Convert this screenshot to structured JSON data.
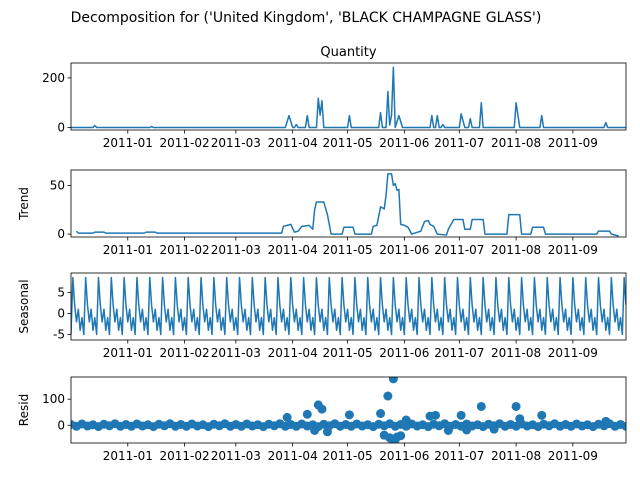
{
  "figure": {
    "suptitle": "Decomposition for ('United Kingdom', 'BLACK CHAMPAGNE GLASS')"
  },
  "chart_data": [
    {
      "type": "line",
      "title": "Quantity",
      "ylabel": "",
      "xlim": [
        "2010-12-01",
        "2011-09-30"
      ],
      "ylim": [
        -10,
        260
      ],
      "yticks": [
        0,
        200
      ],
      "xticks": [
        "2011-01",
        "2011-02",
        "2011-03",
        "2011-04",
        "2011-05",
        "2011-06",
        "2011-07",
        "2011-08",
        "2011-09"
      ],
      "color": "#1f77b4",
      "points": [
        [
          "2010-12-01",
          0
        ],
        [
          "2010-12-13",
          0
        ],
        [
          "2010-12-14",
          8
        ],
        [
          "2010-12-15",
          0
        ],
        [
          "2011-01-13",
          0
        ],
        [
          "2011-01-14",
          4
        ],
        [
          "2011-01-15",
          0
        ],
        [
          "2011-03-28",
          0
        ],
        [
          "2011-03-30",
          48
        ],
        [
          "2011-04-01",
          0
        ],
        [
          "2011-04-02",
          0
        ],
        [
          "2011-04-03",
          12
        ],
        [
          "2011-04-04",
          0
        ],
        [
          "2011-04-08",
          0
        ],
        [
          "2011-04-09",
          48
        ],
        [
          "2011-04-10",
          0
        ],
        [
          "2011-04-14",
          0
        ],
        [
          "2011-04-15",
          118
        ],
        [
          "2011-04-16",
          50
        ],
        [
          "2011-04-17",
          108
        ],
        [
          "2011-04-18",
          0
        ],
        [
          "2011-05-01",
          0
        ],
        [
          "2011-05-02",
          48
        ],
        [
          "2011-05-03",
          0
        ],
        [
          "2011-05-18",
          0
        ],
        [
          "2011-05-19",
          60
        ],
        [
          "2011-05-20",
          0
        ],
        [
          "2011-05-22",
          0
        ],
        [
          "2011-05-23",
          145
        ],
        [
          "2011-05-24",
          10
        ],
        [
          "2011-05-25",
          50
        ],
        [
          "2011-05-26",
          243
        ],
        [
          "2011-05-27",
          0
        ],
        [
          "2011-05-29",
          48
        ],
        [
          "2011-05-31",
          0
        ],
        [
          "2011-06-15",
          0
        ],
        [
          "2011-06-16",
          48
        ],
        [
          "2011-06-17",
          0
        ],
        [
          "2011-06-18",
          0
        ],
        [
          "2011-06-19",
          48
        ],
        [
          "2011-06-20",
          0
        ],
        [
          "2011-06-21",
          0
        ],
        [
          "2011-06-22",
          12
        ],
        [
          "2011-06-23",
          0
        ],
        [
          "2011-07-01",
          0
        ],
        [
          "2011-07-02",
          55
        ],
        [
          "2011-07-04",
          0
        ],
        [
          "2011-07-06",
          0
        ],
        [
          "2011-07-07",
          36
        ],
        [
          "2011-07-08",
          0
        ],
        [
          "2011-07-12",
          0
        ],
        [
          "2011-07-13",
          100
        ],
        [
          "2011-07-14",
          0
        ],
        [
          "2011-07-31",
          0
        ],
        [
          "2011-08-01",
          100
        ],
        [
          "2011-08-03",
          0
        ],
        [
          "2011-08-14",
          0
        ],
        [
          "2011-08-15",
          48
        ],
        [
          "2011-08-16",
          0
        ],
        [
          "2011-09-18",
          0
        ],
        [
          "2011-09-19",
          20
        ],
        [
          "2011-09-20",
          0
        ],
        [
          "2011-09-30",
          0
        ]
      ]
    },
    {
      "type": "line",
      "title": "",
      "ylabel": "Trend",
      "xlim": [
        "2010-12-01",
        "2011-09-30"
      ],
      "ylim": [
        -3,
        66
      ],
      "yticks": [
        0,
        50
      ],
      "xticks": [
        "2011-01",
        "2011-02",
        "2011-03",
        "2011-04",
        "2011-05",
        "2011-06",
        "2011-07",
        "2011-08",
        "2011-09"
      ],
      "color": "#1f77b4",
      "points": [
        [
          "2010-12-04",
          3
        ],
        [
          "2010-12-05",
          1
        ],
        [
          "2010-12-13",
          1
        ],
        [
          "2010-12-14",
          2
        ],
        [
          "2010-12-19",
          2
        ],
        [
          "2010-12-20",
          1
        ],
        [
          "2011-01-10",
          1
        ],
        [
          "2011-01-11",
          2
        ],
        [
          "2011-01-16",
          2
        ],
        [
          "2011-01-17",
          1
        ],
        [
          "2011-03-26",
          1
        ],
        [
          "2011-03-27",
          8
        ],
        [
          "2011-03-31",
          10
        ],
        [
          "2011-04-02",
          2
        ],
        [
          "2011-04-04",
          3
        ],
        [
          "2011-04-06",
          8
        ],
        [
          "2011-04-10",
          9
        ],
        [
          "2011-04-12",
          5
        ],
        [
          "2011-04-13",
          25
        ],
        [
          "2011-04-14",
          33
        ],
        [
          "2011-04-18",
          33
        ],
        [
          "2011-04-20",
          20
        ],
        [
          "2011-04-22",
          0
        ],
        [
          "2011-04-28",
          0
        ],
        [
          "2011-04-29",
          7
        ],
        [
          "2011-05-04",
          7
        ],
        [
          "2011-05-05",
          0
        ],
        [
          "2011-05-14",
          0
        ],
        [
          "2011-05-15",
          8
        ],
        [
          "2011-05-17",
          9
        ],
        [
          "2011-05-19",
          28
        ],
        [
          "2011-05-21",
          26
        ],
        [
          "2011-05-22",
          40
        ],
        [
          "2011-05-23",
          62
        ],
        [
          "2011-05-25",
          62
        ],
        [
          "2011-05-26",
          50
        ],
        [
          "2011-05-27",
          52
        ],
        [
          "2011-05-28",
          45
        ],
        [
          "2011-05-29",
          46
        ],
        [
          "2011-05-30",
          10
        ],
        [
          "2011-06-01",
          9
        ],
        [
          "2011-06-03",
          7
        ],
        [
          "2011-06-05",
          0
        ],
        [
          "2011-06-10",
          3
        ],
        [
          "2011-06-12",
          13
        ],
        [
          "2011-06-14",
          14
        ],
        [
          "2011-06-15",
          10
        ],
        [
          "2011-06-17",
          8
        ],
        [
          "2011-06-19",
          0
        ],
        [
          "2011-06-24",
          -1
        ],
        [
          "2011-06-25",
          5
        ],
        [
          "2011-06-28",
          15
        ],
        [
          "2011-07-03",
          15
        ],
        [
          "2011-07-04",
          5
        ],
        [
          "2011-07-07",
          5
        ],
        [
          "2011-07-08",
          15
        ],
        [
          "2011-07-14",
          15
        ],
        [
          "2011-07-15",
          0
        ],
        [
          "2011-07-27",
          0
        ],
        [
          "2011-07-28",
          20
        ],
        [
          "2011-08-03",
          20
        ],
        [
          "2011-08-04",
          0
        ],
        [
          "2011-08-09",
          0
        ],
        [
          "2011-08-10",
          7
        ],
        [
          "2011-08-16",
          7
        ],
        [
          "2011-08-17",
          0
        ],
        [
          "2011-09-14",
          0
        ],
        [
          "2011-09-15",
          3
        ],
        [
          "2011-09-21",
          3
        ],
        [
          "2011-09-22",
          0
        ],
        [
          "2011-09-26",
          -2
        ]
      ]
    },
    {
      "type": "line",
      "title": "",
      "ylabel": "Seasonal",
      "xlim": [
        "2010-12-01",
        "2011-09-30"
      ],
      "ylim": [
        -6.3,
        9.6
      ],
      "yticks": [
        -5,
        0,
        5
      ],
      "xticks": [
        "2011-01",
        "2011-02",
        "2011-03",
        "2011-04",
        "2011-05",
        "2011-06",
        "2011-07",
        "2011-08",
        "2011-09"
      ],
      "color": "#1f77b4",
      "period_days": 7,
      "start": "2010-12-01",
      "end": "2011-09-30",
      "pattern": [
        -5,
        8.5,
        2,
        -2,
        1,
        -4,
        -1
      ]
    },
    {
      "type": "scatter",
      "title": "",
      "ylabel": "Resid",
      "xlim": [
        "2010-12-01",
        "2011-09-30"
      ],
      "ylim": [
        -68,
        185
      ],
      "yticks": [
        0,
        100
      ],
      "xticks": [
        "2011-01",
        "2011-02",
        "2011-03",
        "2011-04",
        "2011-05",
        "2011-06",
        "2011-07",
        "2011-08",
        "2011-09"
      ],
      "color": "#1f77b4",
      "baseline": 0,
      "noise_points": {
        "start": "2010-12-01",
        "end": "2011-09-30",
        "pattern": [
          3,
          -4,
          5,
          -3,
          2,
          -5,
          4,
          -2,
          6,
          -4
        ]
      },
      "points": [
        [
          "2011-03-29",
          30
        ],
        [
          "2011-04-09",
          42
        ],
        [
          "2011-04-15",
          78
        ],
        [
          "2011-04-17",
          62
        ],
        [
          "2011-04-13",
          -20
        ],
        [
          "2011-04-20",
          -25
        ],
        [
          "2011-05-02",
          40
        ],
        [
          "2011-05-19",
          45
        ],
        [
          "2011-05-23",
          112
        ],
        [
          "2011-05-26",
          178
        ],
        [
          "2011-05-21",
          -38
        ],
        [
          "2011-05-24",
          -48
        ],
        [
          "2011-05-25",
          -52
        ],
        [
          "2011-05-27",
          -55
        ],
        [
          "2011-05-28",
          -45
        ],
        [
          "2011-05-30",
          -40
        ],
        [
          "2011-06-15",
          35
        ],
        [
          "2011-06-18",
          38
        ],
        [
          "2011-06-02",
          20
        ],
        [
          "2011-07-02",
          38
        ],
        [
          "2011-07-13",
          72
        ],
        [
          "2011-07-20",
          -15
        ],
        [
          "2011-08-01",
          72
        ],
        [
          "2011-08-03",
          25
        ],
        [
          "2011-08-15",
          38
        ],
        [
          "2011-09-19",
          15
        ],
        [
          "2011-06-25",
          -20
        ],
        [
          "2011-07-05",
          -18
        ]
      ]
    }
  ]
}
